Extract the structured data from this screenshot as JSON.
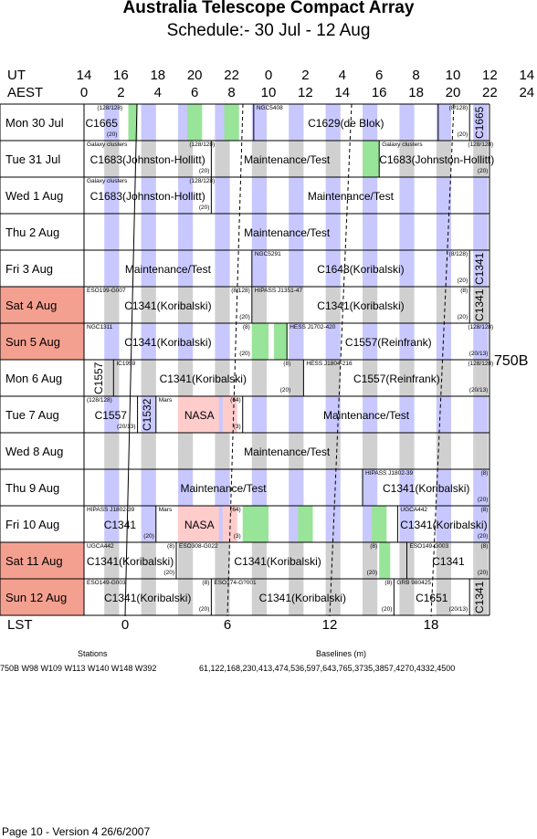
{
  "title": "Australia Telescope Compact Array",
  "subtitle": "Schedule:- 30 Jul - 12 Aug",
  "ut_label": "UT",
  "aest_label": "AEST",
  "ut_ticks": [
    "14",
    "16",
    "18",
    "20",
    "22",
    "0",
    "2",
    "4",
    "6",
    "8",
    "10",
    "12",
    "14"
  ],
  "aest_ticks": [
    "0",
    "2",
    "4",
    "6",
    "8",
    "10",
    "12",
    "14",
    "16",
    "18",
    "20",
    "22",
    "24"
  ],
  "lst_label": "LST",
  "lst_ticks": [
    "0",
    "6",
    "12",
    "18"
  ],
  "config": "750B",
  "colors": {
    "weekend": "#f4a090",
    "blue": "#c8c8ff",
    "green": "#98e498",
    "grey": "#d0d0d0",
    "pink": "#ffcccc"
  },
  "days": [
    {
      "label": "Mon    30 Jul",
      "weekend": false,
      "shade": "blue",
      "blocks": [
        {
          "s": 0.0,
          "e": 1.9,
          "big": "C1665",
          "tl": "",
          "tr": "(128/128)",
          "br": "(20)"
        },
        {
          "s": 9.2,
          "e": 19.2,
          "big": "C1629(de Blok)",
          "tl": "NGC5408",
          "tr": "",
          "br": ""
        },
        {
          "s": 19.2,
          "e": 20.9,
          "big": "",
          "tl": "",
          "tr": "(8/128)",
          "br": "(20)"
        },
        {
          "s": 20.9,
          "e": 22.0,
          "big": "",
          "tl": "",
          "tr": "",
          "br": "",
          "rot": "C1665"
        }
      ],
      "greens": [
        [
          2.4,
          2.9
        ],
        [
          5.6,
          6.4
        ],
        [
          7.6,
          8.4
        ]
      ]
    },
    {
      "label": "Tue    31 Jul",
      "weekend": false,
      "shade": "grey",
      "blocks": [
        {
          "s": 0.0,
          "e": 6.9,
          "big": "C1683(Johnston-Hollitt)",
          "tl": "Galaxy clusters",
          "tr": "(128/128)",
          "br": "(20)"
        },
        {
          "s": 6.9,
          "e": 15.1,
          "big": "Maintenance/Test",
          "tl": "",
          "tr": "",
          "br": ""
        },
        {
          "s": 16.0,
          "e": 22.0,
          "big": "C1683(Johnston-Hollitt)",
          "tl": "Galaxy clusters",
          "tr": "(128/128)",
          "br": "(20)"
        }
      ],
      "greens": [
        [
          15.1,
          16.0
        ]
      ]
    },
    {
      "label": "Wed    1 Aug",
      "weekend": false,
      "shade": "blue",
      "blocks": [
        {
          "s": 0.0,
          "e": 6.9,
          "big": "C1683(Johnston-Hollitt)",
          "tl": "Galaxy clusters",
          "tr": "(128/128)",
          "br": "(20)"
        },
        {
          "s": 6.9,
          "e": 22.0,
          "big": "Maintenance/Test",
          "tl": "",
          "tr": "",
          "br": ""
        }
      ],
      "greens": []
    },
    {
      "label": "Thu    2 Aug",
      "weekend": false,
      "shade": "blue",
      "blocks": [
        {
          "s": 0.0,
          "e": 22.0,
          "big": "Maintenance/Test",
          "tl": "",
          "tr": "",
          "br": ""
        }
      ],
      "greens": []
    },
    {
      "label": "Fri      3 Aug",
      "weekend": false,
      "shade": "blue",
      "blocks": [
        {
          "s": 0.0,
          "e": 9.1,
          "big": "Maintenance/Test",
          "tl": "",
          "tr": "",
          "br": ""
        },
        {
          "s": 9.1,
          "e": 20.9,
          "big": "C1648(Koribalski)",
          "tl": "NGC5291",
          "tr": "(8/128)",
          "br": "(20)"
        },
        {
          "s": 20.9,
          "e": 22.0,
          "big": "",
          "tl": "",
          "tr": "",
          "br": "",
          "rot": "C1341"
        }
      ],
      "greens": []
    },
    {
      "label": "Sat    4 Aug",
      "weekend": true,
      "shade": "grey",
      "blocks": [
        {
          "s": 0.0,
          "e": 9.1,
          "big": "C1341(Koribalski)",
          "tl": "ESO199-G007",
          "tr": "(8/128)",
          "br": "(20)"
        },
        {
          "s": 9.1,
          "e": 20.9,
          "big": "C1341(Koribalski)",
          "tl": "HIPASS J1351-47",
          "tr": "(8)",
          "br": "(20)"
        },
        {
          "s": 20.9,
          "e": 22.0,
          "big": "",
          "tl": "",
          "tr": "",
          "br": "",
          "rot": "C1341"
        }
      ],
      "greens": []
    },
    {
      "label": "Sun    5 Aug",
      "weekend": true,
      "shade": "blue",
      "blocks": [
        {
          "s": 0.0,
          "e": 9.1,
          "big": "C1341(Koribalski)",
          "tl": "NGC1311",
          "tr": "(8)",
          "br": "(20)"
        },
        {
          "s": 11.0,
          "e": 22.0,
          "big": "C1557(Reinfrank)",
          "tl": "HESS J1702-420",
          "tr": "(128/128)",
          "br": "(20/13)"
        }
      ],
      "greens": [
        [
          9.1,
          10.0
        ],
        [
          10.3,
          11.0
        ]
      ]
    },
    {
      "label": "Mon    6 Aug",
      "weekend": false,
      "shade": "grey",
      "blocks": [
        {
          "s": 0.0,
          "e": 1.6,
          "big": "",
          "tl": "",
          "tr": "",
          "br": "",
          "rot": "C1557"
        },
        {
          "s": 1.6,
          "e": 11.3,
          "big": "C1341(Koribalski)",
          "tl": "IC1959",
          "tr": "(8)",
          "br": "(20)"
        },
        {
          "s": 11.9,
          "e": 22.0,
          "big": "C1557(Reinfrank)",
          "tl": "HESS J1804-216",
          "tr": "(128/128)",
          "br": "(20/13)"
        }
      ],
      "greens": []
    },
    {
      "label": "Tue    7 Aug",
      "weekend": false,
      "shade": "blue",
      "blocks": [
        {
          "s": 0.0,
          "e": 2.9,
          "big": "C1557",
          "tl": "(128/128)",
          "tr": "",
          "br": "(20/13)"
        },
        {
          "s": 2.9,
          "e": 3.9,
          "big": "",
          "tl": "",
          "tr": "",
          "br": "",
          "rot": "C1532"
        },
        {
          "s": 3.9,
          "e": 8.6,
          "big": "NASA",
          "tl": "Mars",
          "tr": "(64)",
          "br": "(3)"
        },
        {
          "s": 8.6,
          "e": 22.0,
          "big": "Maintenance/Test",
          "tl": "",
          "tr": "",
          "br": ""
        }
      ],
      "greens": []
    },
    {
      "label": "Wed    8 Aug",
      "weekend": false,
      "shade": "grey",
      "blocks": [
        {
          "s": 0.0,
          "e": 22.0,
          "big": "Maintenance/Test",
          "tl": "",
          "tr": "",
          "br": ""
        }
      ],
      "greens": []
    },
    {
      "label": "Thu    9 Aug",
      "weekend": false,
      "shade": "blue",
      "blocks": [
        {
          "s": 0.0,
          "e": 15.1,
          "big": "Maintenance/Test",
          "tl": "",
          "tr": "",
          "br": ""
        },
        {
          "s": 15.1,
          "e": 22.0,
          "big": "C1341(Koribalski)",
          "tl": "HIPASS J1802-39",
          "tr": "(8)",
          "br": "(20)"
        }
      ],
      "greens": []
    },
    {
      "label": "Fri      10 Aug",
      "weekend": false,
      "shade": "blue",
      "blocks": [
        {
          "s": 0.0,
          "e": 3.9,
          "big": "C1341",
          "tl": "HIPASS J1802-39",
          "tr": "",
          "br": "(20)"
        },
        {
          "s": 3.9,
          "e": 8.6,
          "big": "NASA",
          "tl": "Mars",
          "tr": "(64)",
          "br": "(3)"
        },
        {
          "s": 17.0,
          "e": 22.0,
          "big": "C1341(Koribalski)",
          "tl": "UGCA442",
          "tr": "(8)",
          "br": "(20)"
        }
      ],
      "greens": [
        [
          8.6,
          10.0
        ],
        [
          11.6,
          12.4
        ],
        [
          15.6,
          16.4
        ]
      ]
    },
    {
      "label": "Sat    11 Aug",
      "weekend": true,
      "shade": "grey",
      "blocks": [
        {
          "s": 0.0,
          "e": 5.0,
          "big": "C1341(Koribalski)",
          "tl": "UGCA442",
          "tr": "(8)",
          "br": "(20)"
        },
        {
          "s": 5.0,
          "e": 16.0,
          "big": "C1341(Koribalski)",
          "tl": "ESO308-G022",
          "tr": "(8)",
          "br": "(20)"
        },
        {
          "s": 17.5,
          "e": 22.0,
          "big": "C1341",
          "tl": "ESO149-G003",
          "tr": "(8)",
          "br": "(20)"
        }
      ],
      "greens": [
        [
          16.0,
          16.6
        ]
      ]
    },
    {
      "label": "Sun    12 Aug",
      "weekend": true,
      "shade": "grey",
      "blocks": [
        {
          "s": 0.0,
          "e": 6.9,
          "big": "C1341(Koribalski)",
          "tl": "ESO149-G003",
          "tr": "(8)",
          "br": "(20)"
        },
        {
          "s": 6.9,
          "e": 16.8,
          "big": "C1341(Koribalski)",
          "tl": "ESO174-G?001",
          "tr": "(8)",
          "br": "(20)"
        },
        {
          "s": 16.8,
          "e": 20.9,
          "big": "C1651",
          "tl": "GRB 980425",
          "tr": "",
          "br": "(20/13)"
        },
        {
          "s": 20.9,
          "e": 22.0,
          "big": "",
          "tl": "",
          "tr": "",
          "br": "",
          "rot": "C1341"
        }
      ],
      "greens": []
    }
  ],
  "stations_label": "Stations",
  "stations_value": "750B   W98 W109 W113 W140 W148 W392",
  "baselines_label": "Baselines (m)",
  "baselines_value": "61,122,168,230,413,474,536,597,643,765,3735,3857,4270,4332,4500",
  "footer": "Page 10 - Version 4  26/6/2007"
}
